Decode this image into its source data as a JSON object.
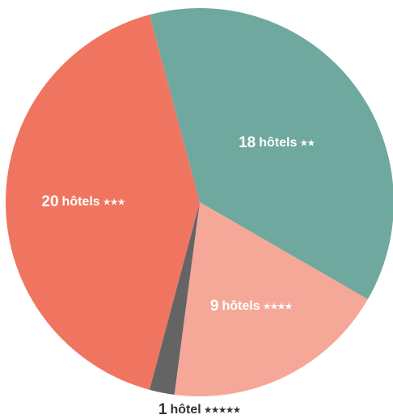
{
  "chart_data": {
    "type": "pie",
    "values": [
      18,
      9,
      1,
      20
    ],
    "labels": [
      "hôtels",
      "hôtels",
      "hôtel",
      "hôtels"
    ],
    "stars": [
      "★★",
      "★★★★",
      "★★★★★",
      "★★★"
    ],
    "colors": [
      "#6fa89e",
      "#f5a898",
      "#646464",
      "#f07560"
    ]
  }
}
